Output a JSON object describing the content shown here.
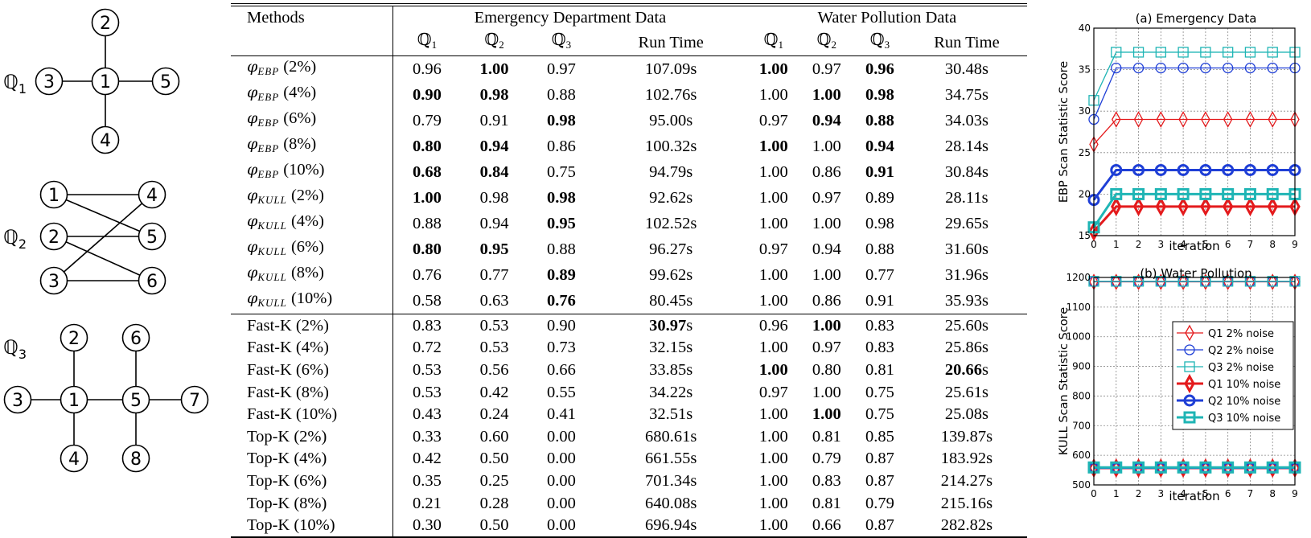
{
  "graphs": [
    {
      "label": "ℚ",
      "sub": "1",
      "nodes": [
        "1",
        "2",
        "3",
        "4",
        "5"
      ]
    },
    {
      "label": "ℚ",
      "sub": "2",
      "nodes": [
        "1",
        "2",
        "3",
        "4",
        "5",
        "6"
      ]
    },
    {
      "label": "ℚ",
      "sub": "3",
      "nodes": [
        "1",
        "2",
        "3",
        "4",
        "5",
        "6",
        "7",
        "8"
      ]
    }
  ],
  "table": {
    "header": {
      "methods": "Methods",
      "group1": "Emergency Department Data",
      "group2": "Water Pollution Data",
      "q_symbol": "ℚ",
      "q_subs": [
        "1",
        "2",
        "3"
      ],
      "runtime": "Run Time"
    },
    "rows": [
      {
        "sym": "φ",
        "sub": "EBP",
        "pct": "(2%)",
        "v": [
          "0.96",
          "1.00",
          "0.97",
          "107.09s",
          "1.00",
          "0.97",
          "0.96",
          "30.48s"
        ],
        "b": [
          1,
          4,
          6
        ]
      },
      {
        "sym": "φ",
        "sub": "EBP",
        "pct": "(4%)",
        "v": [
          "0.90",
          "0.98",
          "0.88",
          "102.76s",
          "1.00",
          "1.00",
          "0.98",
          "34.75s"
        ],
        "b": [
          0,
          1,
          5,
          6
        ]
      },
      {
        "sym": "φ",
        "sub": "EBP",
        "pct": "(6%)",
        "v": [
          "0.79",
          "0.91",
          "0.98",
          "95.00s",
          "0.97",
          "0.94",
          "0.88",
          "34.03s"
        ],
        "b": [
          2,
          5,
          6
        ]
      },
      {
        "sym": "φ",
        "sub": "EBP",
        "pct": "(8%)",
        "v": [
          "0.80",
          "0.94",
          "0.86",
          "100.32s",
          "1.00",
          "1.00",
          "0.94",
          "28.14s"
        ],
        "b": [
          0,
          1,
          4,
          6
        ]
      },
      {
        "sym": "φ",
        "sub": "EBP",
        "pct": "(10%)",
        "v": [
          "0.68",
          "0.84",
          "0.75",
          "94.79s",
          "1.00",
          "0.86",
          "0.91",
          "30.84s"
        ],
        "b": [
          0,
          1,
          6
        ]
      },
      {
        "sym": "φ",
        "sub": "KULL",
        "pct": "(2%)",
        "v": [
          "1.00",
          "0.98",
          "0.98",
          "92.62s",
          "1.00",
          "0.97",
          "0.89",
          "28.11s"
        ],
        "b": [
          0,
          2
        ]
      },
      {
        "sym": "φ",
        "sub": "KULL",
        "pct": "(4%)",
        "v": [
          "0.88",
          "0.94",
          "0.95",
          "102.52s",
          "1.00",
          "1.00",
          "0.98",
          "29.65s"
        ],
        "b": [
          2
        ]
      },
      {
        "sym": "φ",
        "sub": "KULL",
        "pct": "(6%)",
        "v": [
          "0.80",
          "0.95",
          "0.88",
          "96.27s",
          "0.97",
          "0.94",
          "0.88",
          "31.60s"
        ],
        "b": [
          0,
          1
        ]
      },
      {
        "sym": "φ",
        "sub": "KULL",
        "pct": "(8%)",
        "v": [
          "0.76",
          "0.77",
          "0.89",
          "99.62s",
          "1.00",
          "1.00",
          "0.77",
          "31.96s"
        ],
        "b": [
          2
        ]
      },
      {
        "sym": "φ",
        "sub": "KULL",
        "pct": "(10%)",
        "v": [
          "0.58",
          "0.63",
          "0.76",
          "80.45s",
          "1.00",
          "0.86",
          "0.91",
          "35.93s"
        ],
        "b": [
          2
        ]
      },
      {
        "name": "Fast-K (2%)",
        "v": [
          "0.83",
          "0.53",
          "0.90",
          "30.97",
          "0.96",
          "1.00",
          "0.83",
          "25.60s"
        ],
        "b": [
          3,
          5
        ],
        "boldSuffix": "s"
      },
      {
        "name": "Fast-K (4%)",
        "v": [
          "0.72",
          "0.53",
          "0.73",
          "32.15s",
          "1.00",
          "0.97",
          "0.83",
          "25.86s"
        ],
        "b": []
      },
      {
        "name": "Fast-K (6%)",
        "v": [
          "0.53",
          "0.56",
          "0.66",
          "33.85s",
          "1.00",
          "0.80",
          "0.81",
          "20.66"
        ],
        "b": [
          4,
          7
        ],
        "boldSuffix7": "s"
      },
      {
        "name": "Fast-K (8%)",
        "v": [
          "0.53",
          "0.42",
          "0.55",
          "34.22s",
          "0.97",
          "1.00",
          "0.75",
          "25.61s"
        ],
        "b": []
      },
      {
        "name": "Fast-K (10%)",
        "v": [
          "0.43",
          "0.24",
          "0.41",
          "32.51s",
          "1.00",
          "1.00",
          "0.75",
          "25.08s"
        ],
        "b": [
          5
        ]
      },
      {
        "name": "Top-K (2%)",
        "v": [
          "0.33",
          "0.60",
          "0.00",
          "680.61s",
          "1.00",
          "0.81",
          "0.85",
          "139.87s"
        ],
        "b": []
      },
      {
        "name": "Top-K (4%)",
        "v": [
          "0.42",
          "0.50",
          "0.00",
          "661.55s",
          "1.00",
          "0.79",
          "0.87",
          "183.92s"
        ],
        "b": []
      },
      {
        "name": "Top-K (6%)",
        "v": [
          "0.35",
          "0.25",
          "0.00",
          "701.34s",
          "1.00",
          "0.83",
          "0.87",
          "214.27s"
        ],
        "b": []
      },
      {
        "name": "Top-K (8%)",
        "v": [
          "0.21",
          "0.28",
          "0.00",
          "640.08s",
          "1.00",
          "0.81",
          "0.79",
          "215.16s"
        ],
        "b": []
      },
      {
        "name": "Top-K (10%)",
        "v": [
          "0.30",
          "0.50",
          "0.00",
          "696.94s",
          "1.00",
          "0.66",
          "0.87",
          "282.82s"
        ],
        "b": []
      }
    ]
  },
  "chart_data": [
    {
      "type": "line",
      "title": "(a) Emergency Data",
      "xlabel": "iteration",
      "ylabel": "EBP Scan Statistic Score",
      "xlim": [
        0,
        9
      ],
      "ylim": [
        15,
        40
      ],
      "xticks": [
        "0",
        "1",
        "2",
        "3",
        "4",
        "5",
        "6",
        "7",
        "8",
        "9"
      ],
      "yticks": [
        "15",
        "20",
        "25",
        "30",
        "35",
        "40"
      ],
      "grid": true,
      "x": [
        0,
        1,
        2,
        3,
        4,
        5,
        6,
        7,
        8,
        9
      ],
      "series": [
        {
          "name": "Q1 2% noise",
          "color": "#e41a1c",
          "marker": "diamond",
          "thick": false,
          "values": [
            26,
            29,
            29,
            29,
            29,
            29,
            29,
            29,
            29,
            29
          ]
        },
        {
          "name": "Q2 2% noise",
          "color": "#1f3fd6",
          "marker": "circle",
          "thick": false,
          "values": [
            29,
            35.2,
            35.2,
            35.2,
            35.2,
            35.2,
            35.2,
            35.2,
            35.2,
            35.2
          ]
        },
        {
          "name": "Q3 2% noise",
          "color": "#1fb5b5",
          "marker": "square",
          "thick": false,
          "values": [
            31.3,
            37.1,
            37.1,
            37.1,
            37.1,
            37.1,
            37.1,
            37.1,
            37.1,
            37.1
          ]
        },
        {
          "name": "Q1 10% noise",
          "color": "#e41a1c",
          "marker": "diamond",
          "thick": true,
          "values": [
            15.5,
            18.5,
            18.5,
            18.5,
            18.5,
            18.5,
            18.5,
            18.5,
            18.5,
            18.5
          ]
        },
        {
          "name": "Q2 10% noise",
          "color": "#1f3fd6",
          "marker": "circle",
          "thick": true,
          "values": [
            19.3,
            22.9,
            22.9,
            22.9,
            22.9,
            22.9,
            22.9,
            22.9,
            22.9,
            22.9
          ]
        },
        {
          "name": "Q3 10% noise",
          "color": "#1fb5b5",
          "marker": "square",
          "thick": true,
          "values": [
            16,
            20,
            20,
            20,
            20,
            20,
            20,
            20,
            20,
            20
          ]
        }
      ]
    },
    {
      "type": "line",
      "title": "(b) Water Pollution",
      "xlabel": "iteration",
      "ylabel": "KULL Scan Statistic Score",
      "xlim": [
        0,
        9
      ],
      "ylim": [
        500,
        1200
      ],
      "xticks": [
        "0",
        "1",
        "2",
        "3",
        "4",
        "5",
        "6",
        "7",
        "8",
        "9"
      ],
      "yticks": [
        "500",
        "600",
        "700",
        "800",
        "900",
        "1000",
        "1100",
        "1200"
      ],
      "grid": true,
      "legend": "center-right",
      "x": [
        0,
        1,
        2,
        3,
        4,
        5,
        6,
        7,
        8,
        9
      ],
      "series": [
        {
          "name": "Q1 2% noise",
          "color": "#e41a1c",
          "marker": "diamond",
          "thick": false,
          "values": [
            1185,
            1185,
            1185,
            1185,
            1185,
            1185,
            1185,
            1185,
            1185,
            1185
          ]
        },
        {
          "name": "Q2 2% noise",
          "color": "#1f3fd6",
          "marker": "circle",
          "thick": false,
          "values": [
            1186,
            1186,
            1186,
            1186,
            1186,
            1186,
            1186,
            1186,
            1186,
            1186
          ]
        },
        {
          "name": "Q3 2% noise",
          "color": "#1fb5b5",
          "marker": "square",
          "thick": false,
          "values": [
            1187,
            1187,
            1187,
            1187,
            1187,
            1187,
            1187,
            1187,
            1187,
            1187
          ]
        },
        {
          "name": "Q1 10% noise",
          "color": "#e41a1c",
          "marker": "diamond",
          "thick": true,
          "values": [
            557,
            557,
            557,
            557,
            557,
            557,
            557,
            557,
            557,
            557
          ]
        },
        {
          "name": "Q2 10% noise",
          "color": "#1f3fd6",
          "marker": "circle",
          "thick": true,
          "values": [
            558,
            558,
            558,
            558,
            558,
            558,
            558,
            558,
            558,
            558
          ]
        },
        {
          "name": "Q3 10% noise",
          "color": "#1fb5b5",
          "marker": "square",
          "thick": true,
          "values": [
            559,
            559,
            559,
            559,
            559,
            559,
            559,
            559,
            559,
            559
          ]
        }
      ]
    }
  ]
}
